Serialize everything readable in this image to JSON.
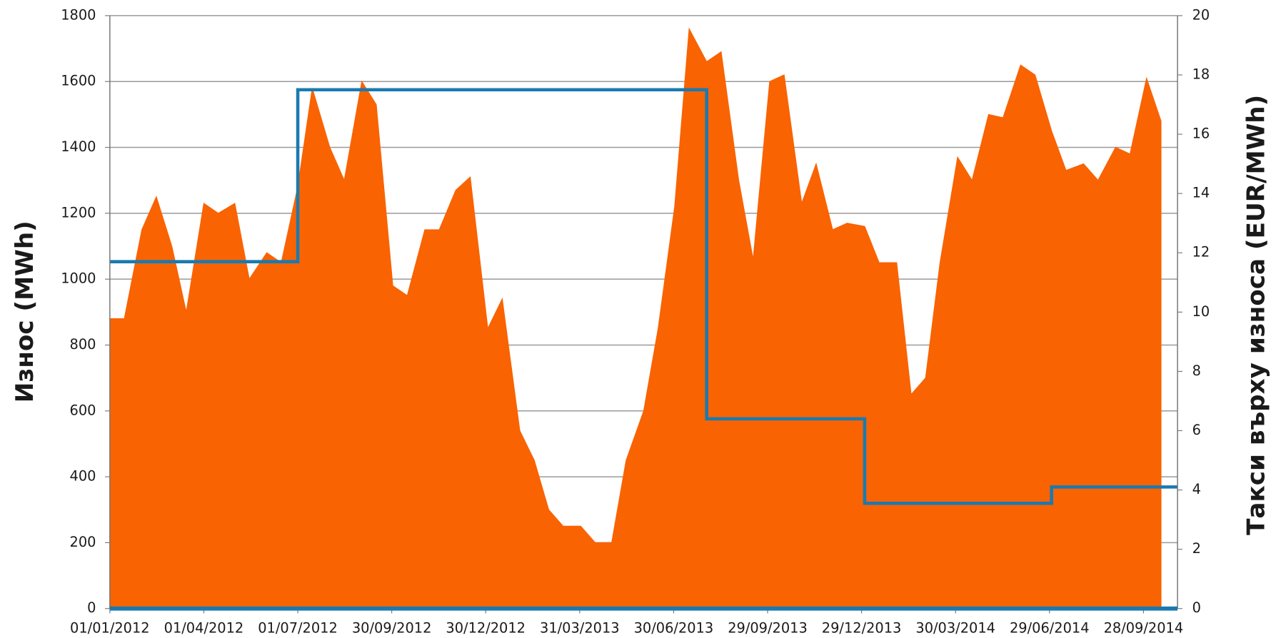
{
  "chart_data": {
    "type": "area_line",
    "y_axis_label": "Износ (MWh)",
    "y2_axis_label": "Такси върху износа (EUR/MWh)",
    "xlim": [
      "01/01/2012",
      "31/10/2014"
    ],
    "xticks": [
      "01/01/2012",
      "01/04/2012",
      "01/07/2012",
      "30/09/2012",
      "30/12/2012",
      "31/03/2013",
      "30/06/2013",
      "29/09/2013",
      "29/12/2013",
      "30/03/2014",
      "29/06/2014",
      "28/09/2014"
    ],
    "ylim": [
      0,
      1800
    ],
    "yticks": [
      0,
      200,
      400,
      600,
      800,
      1000,
      1200,
      1400,
      1600,
      1800
    ],
    "y2lim": [
      0,
      20
    ],
    "y2ticks": [
      0,
      2,
      4,
      6,
      8,
      10,
      12,
      14,
      16,
      18,
      20
    ],
    "grid": true,
    "series": [
      {
        "kind": "area",
        "color": "#f96302",
        "x": [
          "01/01/2012",
          "15/01/2012",
          "01/02/2012",
          "15/02/2012",
          "01/03/2012",
          "15/03/2012",
          "01/04/2012",
          "15/04/2012",
          "01/05/2012",
          "15/05/2012",
          "01/06/2012",
          "15/06/2012",
          "01/07/2012",
          "15/07/2012",
          "01/08/2012",
          "15/08/2012",
          "01/09/2012",
          "15/09/2012",
          "01/10/2012",
          "15/10/2012",
          "01/11/2012",
          "15/11/2012",
          "01/12/2012",
          "15/12/2012",
          "01/01/2013",
          "15/01/2013",
          "01/02/2013",
          "15/02/2013",
          "01/03/2013",
          "15/03/2013",
          "01/04/2013",
          "15/04/2013",
          "01/05/2013",
          "15/05/2013",
          "01/06/2013",
          "15/06/2013",
          "01/07/2013",
          "15/07/2013",
          "01/08/2013",
          "15/08/2013",
          "01/09/2013",
          "15/09/2013",
          "01/10/2013",
          "15/10/2013",
          "01/11/2013",
          "15/11/2013",
          "01/12/2013",
          "15/12/2013",
          "01/01/2014",
          "15/01/2014",
          "01/02/2014",
          "15/02/2014",
          "01/03/2014",
          "15/03/2014",
          "01/04/2014",
          "15/04/2014",
          "01/05/2014",
          "15/05/2014",
          "01/06/2014",
          "15/06/2014",
          "01/07/2014",
          "15/07/2014",
          "01/08/2014",
          "15/08/2014",
          "01/09/2014",
          "15/09/2014",
          "01/10/2014",
          "15/10/2014"
        ],
        "values": [
          880,
          880,
          1150,
          1250,
          1100,
          900,
          1230,
          1200,
          1230,
          1000,
          1080,
          1050,
          1280,
          1580,
          1400,
          1300,
          1600,
          1530,
          980,
          950,
          1150,
          1150,
          1270,
          1310,
          850,
          940,
          540,
          450,
          300,
          250,
          250,
          200,
          200,
          450,
          600,
          850,
          1220,
          1760,
          1660,
          1690,
          1300,
          1060,
          1600,
          1620,
          1230,
          1350,
          1150,
          1170,
          1160,
          1050,
          1050,
          650,
          700,
          1050,
          1370,
          1300,
          1500,
          1490,
          1650,
          1620,
          1450,
          1330,
          1350,
          1300,
          1400,
          1380,
          1610,
          1480
        ]
      },
      {
        "kind": "line",
        "axis": "y2",
        "color": "#1a7ab0",
        "x": [
          "01/01/2012",
          "01/07/2012",
          "01/07/2012",
          "01/08/2013",
          "01/08/2013",
          "01/01/2014",
          "01/01/2014",
          "01/07/2014",
          "01/07/2014",
          "31/10/2014"
        ],
        "values": [
          11.7,
          11.7,
          17.5,
          17.5,
          6.4,
          6.4,
          3.55,
          3.55,
          4.1,
          4.1
        ]
      }
    ]
  }
}
